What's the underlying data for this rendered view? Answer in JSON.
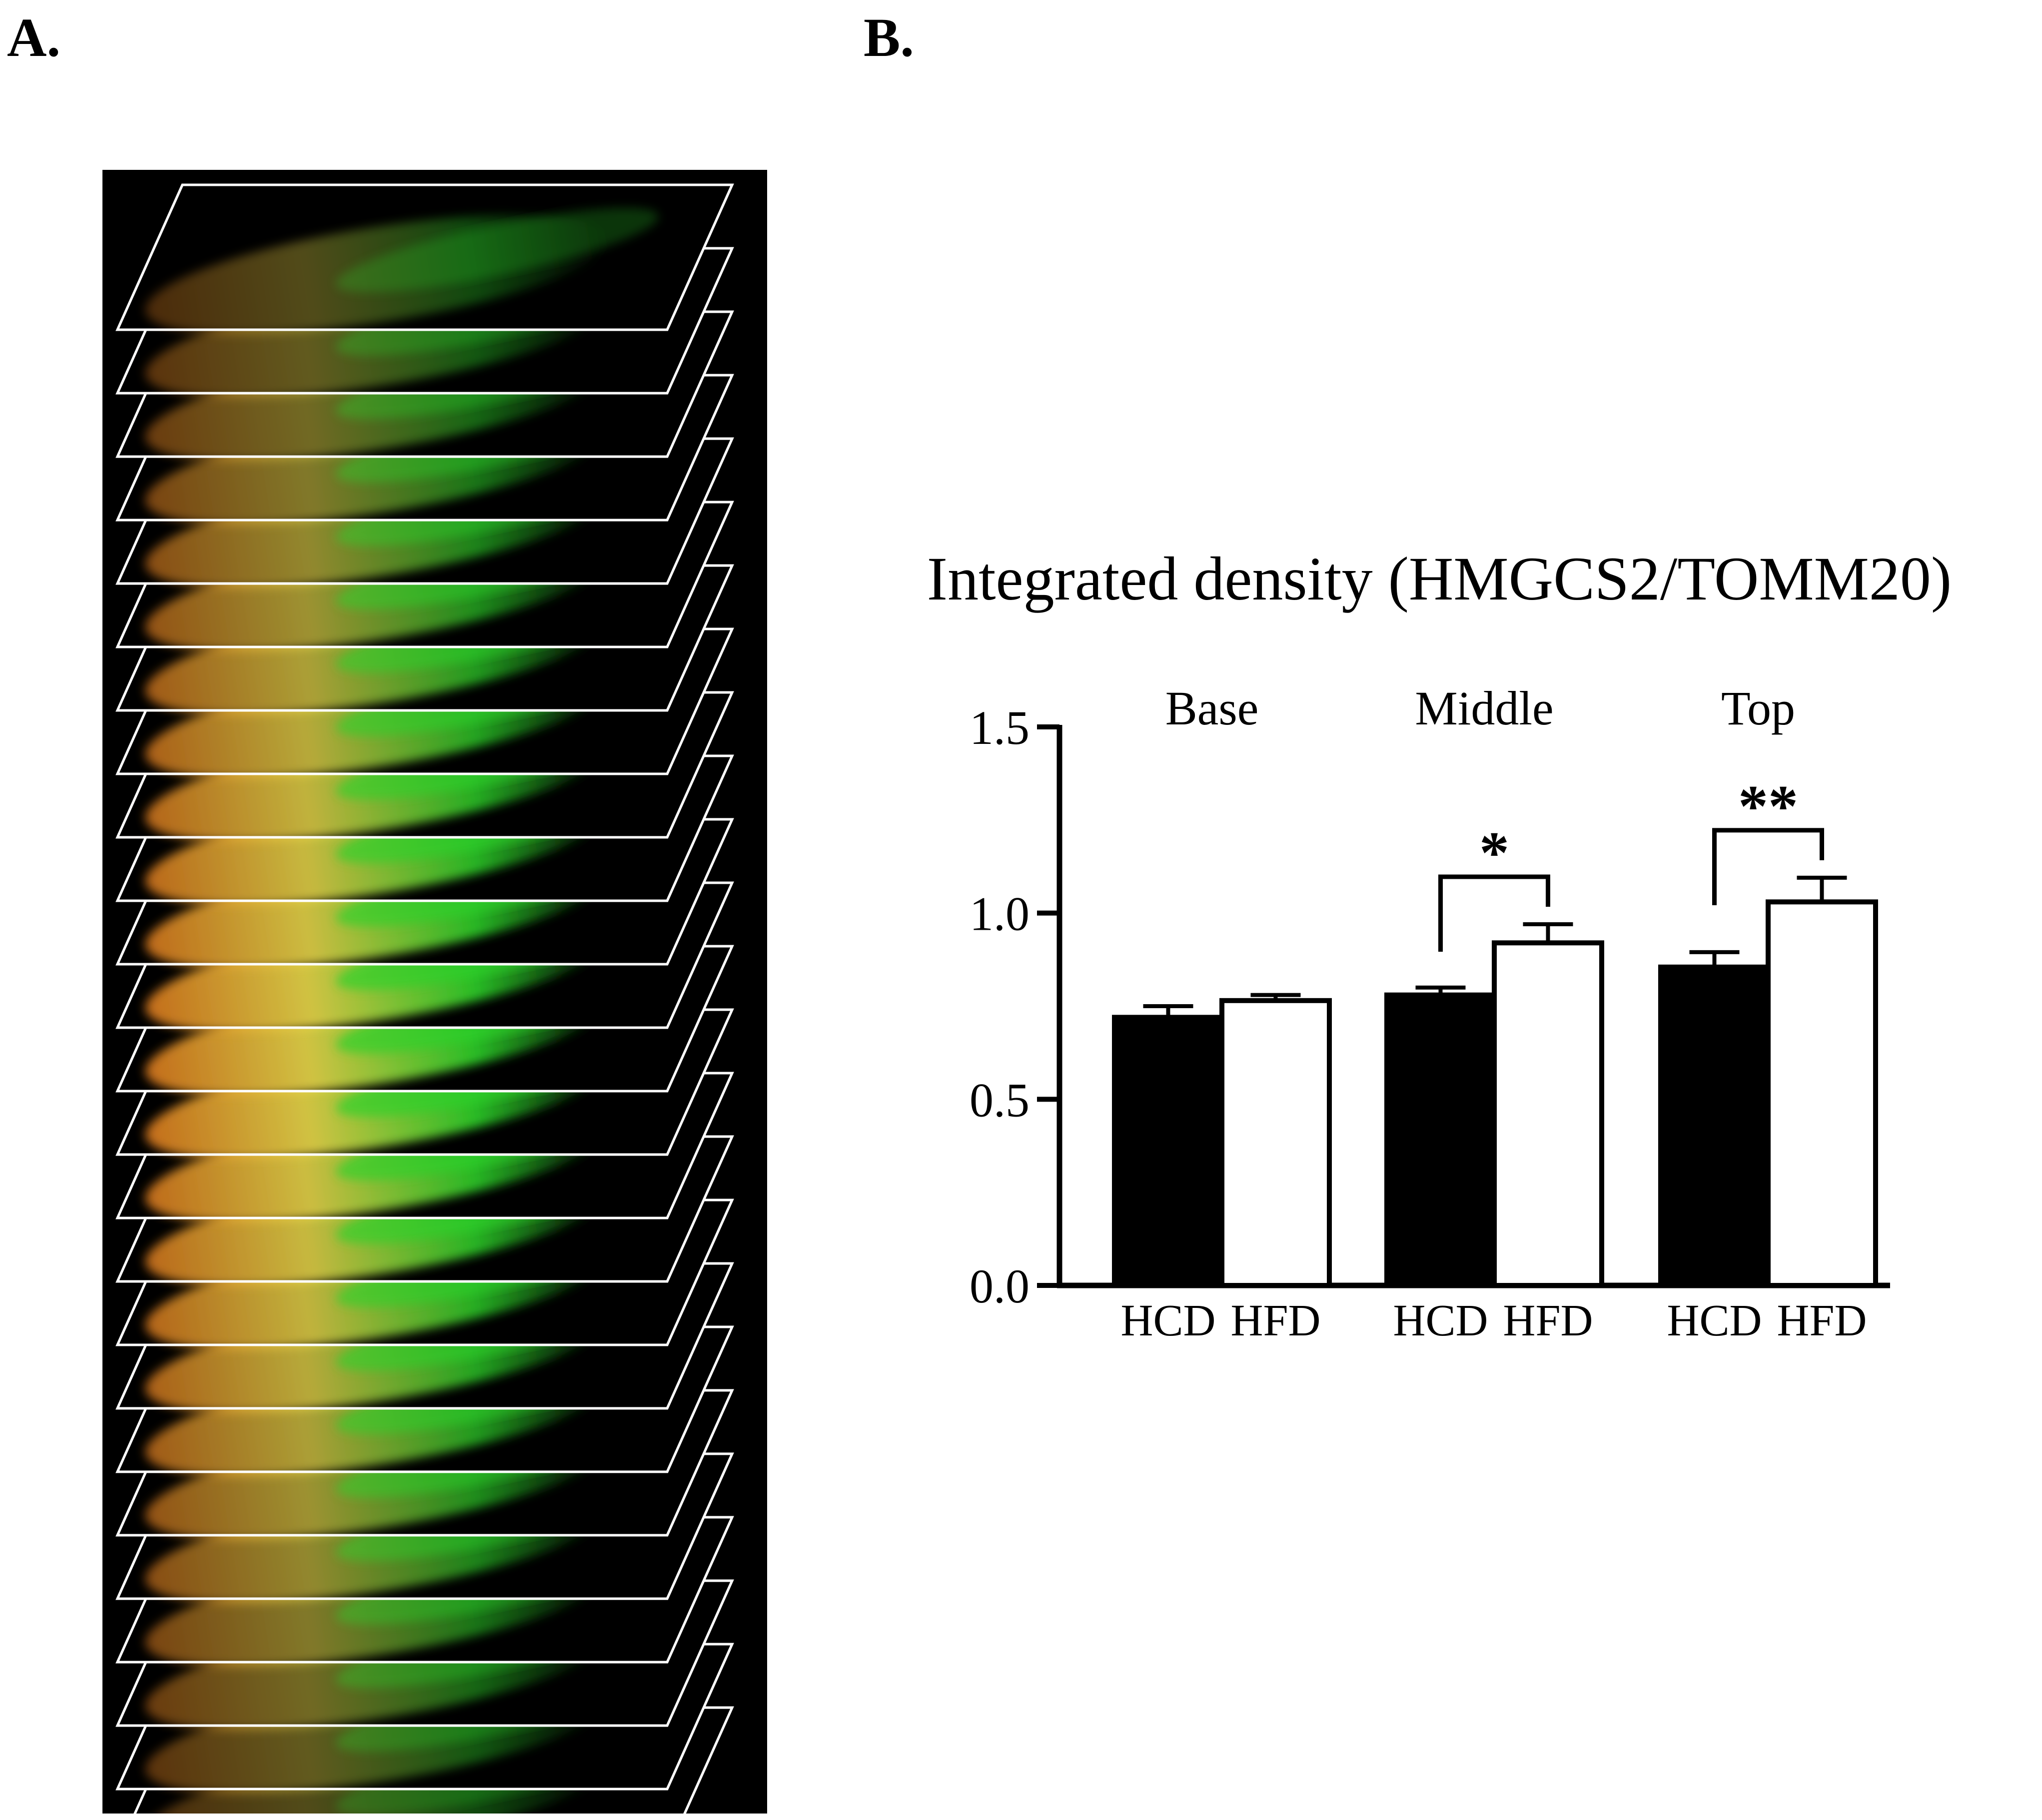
{
  "panels": {
    "a_label": "A.",
    "b_label": "B."
  },
  "image_stack": {
    "description_name": "confocal z-stack slices",
    "slice_count": 25,
    "colors": {
      "background": "#000000",
      "green": "#2ed12a",
      "orange": "#d9781e",
      "yellow": "#e8d84a",
      "outline": "#ffffff"
    }
  },
  "chart_data": {
    "type": "bar",
    "title": "Integrated density (HMGCS2/TOMM20)",
    "groups": [
      "Base",
      "Middle",
      "Top"
    ],
    "bar_labels": [
      "HCD",
      "HFD"
    ],
    "series": [
      {
        "name": "HCD",
        "fill": "#000000",
        "values": [
          0.72,
          0.78,
          0.855
        ],
        "errors": [
          0.03,
          0.02,
          0.04
        ]
      },
      {
        "name": "HFD",
        "fill": "#ffffff",
        "values": [
          0.765,
          0.92,
          1.03
        ],
        "errors": [
          0.015,
          0.05,
          0.065
        ]
      }
    ],
    "ylim": [
      0.0,
      1.5
    ],
    "yticks": [
      "0.0",
      "0.5",
      "1.0",
      "1.5"
    ],
    "significance": [
      {
        "group": "Base",
        "label": ""
      },
      {
        "group": "Middle",
        "label": "*"
      },
      {
        "group": "Top",
        "label": "**"
      }
    ],
    "xlabel": "",
    "ylabel": ""
  }
}
